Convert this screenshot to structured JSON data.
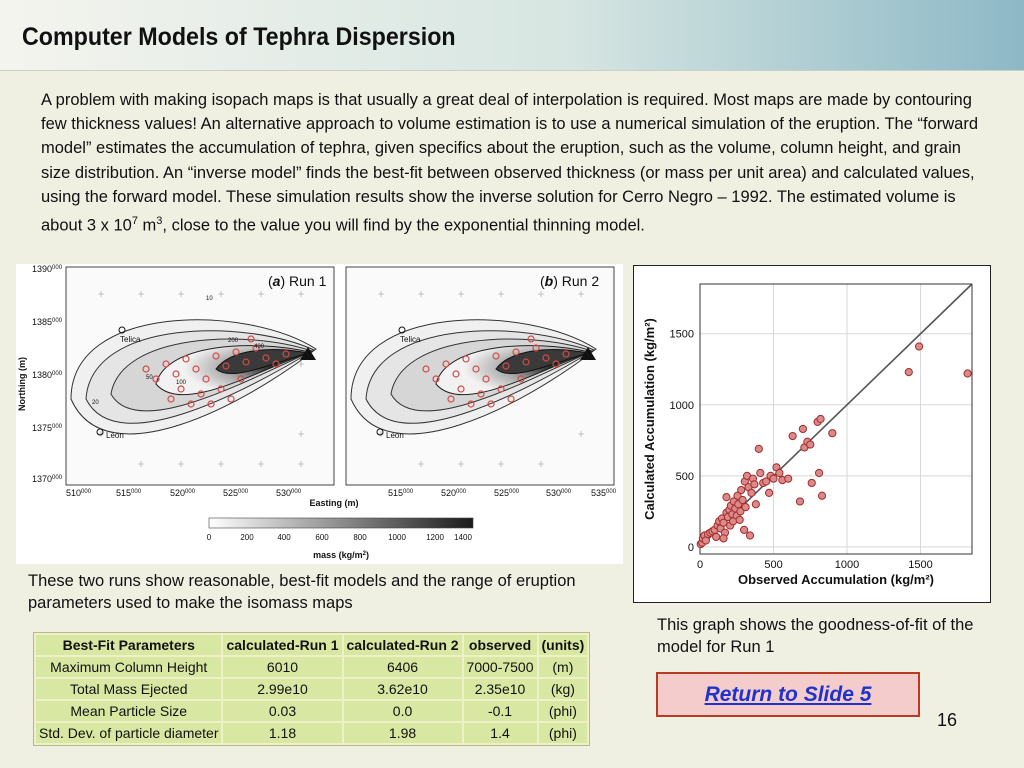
{
  "title": "Computer Models of Tephra Dispersion",
  "intro": {
    "text": "A problem with making isopach maps is that usually a great deal of interpolation is required. Most maps are made by contouring few thickness values! An alternative approach to volume estimation is to use a numerical simulation of the eruption. The “forward model” estimates the accumulation of tephra, given specifics about the eruption, such as the volume, column height, and grain size distribution. An “inverse model” finds the best-fit between observed thickness (or mass per unit area) and calculated values, using the forward model. These simulation results show the inverse solution for Cerro Negro – 1992. The estimated volume is about 3 x 10",
    "exp1": "7",
    "unit": " m",
    "exp2": "3",
    "tail": ", close to the value you will find by the exponential thinning model."
  },
  "maps_figure": {
    "panel_a": {
      "open": "(",
      "letter": "a",
      "close": ") Run 1"
    },
    "panel_b": {
      "open": "(",
      "letter": "b",
      "close": ") Run 2"
    },
    "y_axis_label": "Northing (m)",
    "x_axis_label": "Easting (m)",
    "y_ticks": [
      {
        "main": "1390",
        "sup": "000"
      },
      {
        "main": "1385",
        "sup": "000"
      },
      {
        "main": "1380",
        "sup": "000"
      },
      {
        "main": "1375",
        "sup": "000"
      },
      {
        "main": "1370",
        "sup": "000"
      }
    ],
    "x_ticks_a": [
      {
        "main": "510",
        "sup": "000"
      },
      {
        "main": "515",
        "sup": "000"
      },
      {
        "main": "520",
        "sup": "000"
      },
      {
        "main": "525",
        "sup": "000"
      },
      {
        "main": "530",
        "sup": "000"
      }
    ],
    "x_ticks_b": [
      {
        "main": "515",
        "sup": "000"
      },
      {
        "main": "520",
        "sup": "000"
      },
      {
        "main": "525",
        "sup": "000"
      },
      {
        "main": "530",
        "sup": "000"
      },
      {
        "main": "535",
        "sup": "000"
      }
    ],
    "towns": [
      "Telica",
      "Leon"
    ],
    "contour_labels": [
      "10",
      "20",
      "10",
      "20",
      "50",
      "100",
      "200",
      "400"
    ],
    "colorbar": {
      "ticks": [
        "0",
        "200",
        "400",
        "600",
        "800",
        "1000",
        "1200",
        "1400"
      ],
      "label": "mass (kg/m",
      "label_sup": "2",
      "label_close": ")"
    }
  },
  "caption_left": "These two runs show reasonable, best-fit models and the range of eruption parameters used to make the isomass maps",
  "chart_data": {
    "type": "scatter",
    "xlabel": "Observed Accumulation (kg/m²)",
    "ylabel": "Calculated Accumulation (kg/m²)",
    "xlim": [
      0,
      1850
    ],
    "ylim": [
      -50,
      1850
    ],
    "xticks": [
      0,
      500,
      1000,
      1500
    ],
    "yticks": [
      0,
      500,
      1000,
      1500
    ],
    "grid": true,
    "reference_line": "1:1",
    "points": [
      [
        5,
        20
      ],
      [
        15,
        30
      ],
      [
        20,
        60
      ],
      [
        30,
        80
      ],
      [
        40,
        45
      ],
      [
        55,
        90
      ],
      [
        70,
        100
      ],
      [
        85,
        110
      ],
      [
        100,
        120
      ],
      [
        110,
        70
      ],
      [
        120,
        150
      ],
      [
        130,
        180
      ],
      [
        140,
        130
      ],
      [
        150,
        200
      ],
      [
        160,
        170
      ],
      [
        170,
        100
      ],
      [
        180,
        240
      ],
      [
        190,
        210
      ],
      [
        200,
        260
      ],
      [
        205,
        150
      ],
      [
        210,
        290
      ],
      [
        220,
        230
      ],
      [
        225,
        180
      ],
      [
        230,
        320
      ],
      [
        240,
        270
      ],
      [
        250,
        220
      ],
      [
        255,
        360
      ],
      [
        260,
        300
      ],
      [
        270,
        190
      ],
      [
        275,
        250
      ],
      [
        280,
        400
      ],
      [
        290,
        330
      ],
      [
        300,
        120
      ],
      [
        305,
        460
      ],
      [
        310,
        280
      ],
      [
        320,
        500
      ],
      [
        330,
        420
      ],
      [
        340,
        80
      ],
      [
        350,
        380
      ],
      [
        360,
        480
      ],
      [
        370,
        440
      ],
      [
        380,
        300
      ],
      [
        400,
        690
      ],
      [
        410,
        520
      ],
      [
        430,
        450
      ],
      [
        450,
        460
      ],
      [
        470,
        380
      ],
      [
        480,
        500
      ],
      [
        500,
        480
      ],
      [
        520,
        560
      ],
      [
        540,
        520
      ],
      [
        560,
        470
      ],
      [
        600,
        480
      ],
      [
        630,
        780
      ],
      [
        680,
        320
      ],
      [
        710,
        700
      ],
      [
        730,
        740
      ],
      [
        760,
        450
      ],
      [
        800,
        880
      ],
      [
        810,
        520
      ],
      [
        820,
        900
      ],
      [
        830,
        360
      ],
      [
        900,
        800
      ],
      [
        1490,
        1410
      ],
      [
        1420,
        1230
      ],
      [
        1820,
        1220
      ],
      [
        700,
        830
      ],
      [
        750,
        720
      ],
      [
        180,
        350
      ],
      [
        160,
        60
      ]
    ]
  },
  "caption_right": "This graph shows the goodness-of-fit of the model for Run 1",
  "table": {
    "headers": [
      "Best-Fit Parameters",
      "calculated-Run 1",
      "calculated-Run 2",
      "observed",
      "(units)"
    ],
    "rows": [
      [
        "Maximum Column Height",
        "6010",
        "6406",
        "7000-7500",
        "(m)"
      ],
      [
        "Total Mass Ejected",
        "2.99e10",
        "3.62e10",
        "2.35e10",
        "(kg)"
      ],
      [
        "Mean Particle Size",
        "0.03",
        "0.0",
        "-0.1",
        "(phi)"
      ],
      [
        "Std. Dev. of particle diameter",
        "1.18",
        "1.98",
        "1.4",
        "(phi)"
      ]
    ]
  },
  "return_link": "Return to Slide 5",
  "page_number": "16"
}
